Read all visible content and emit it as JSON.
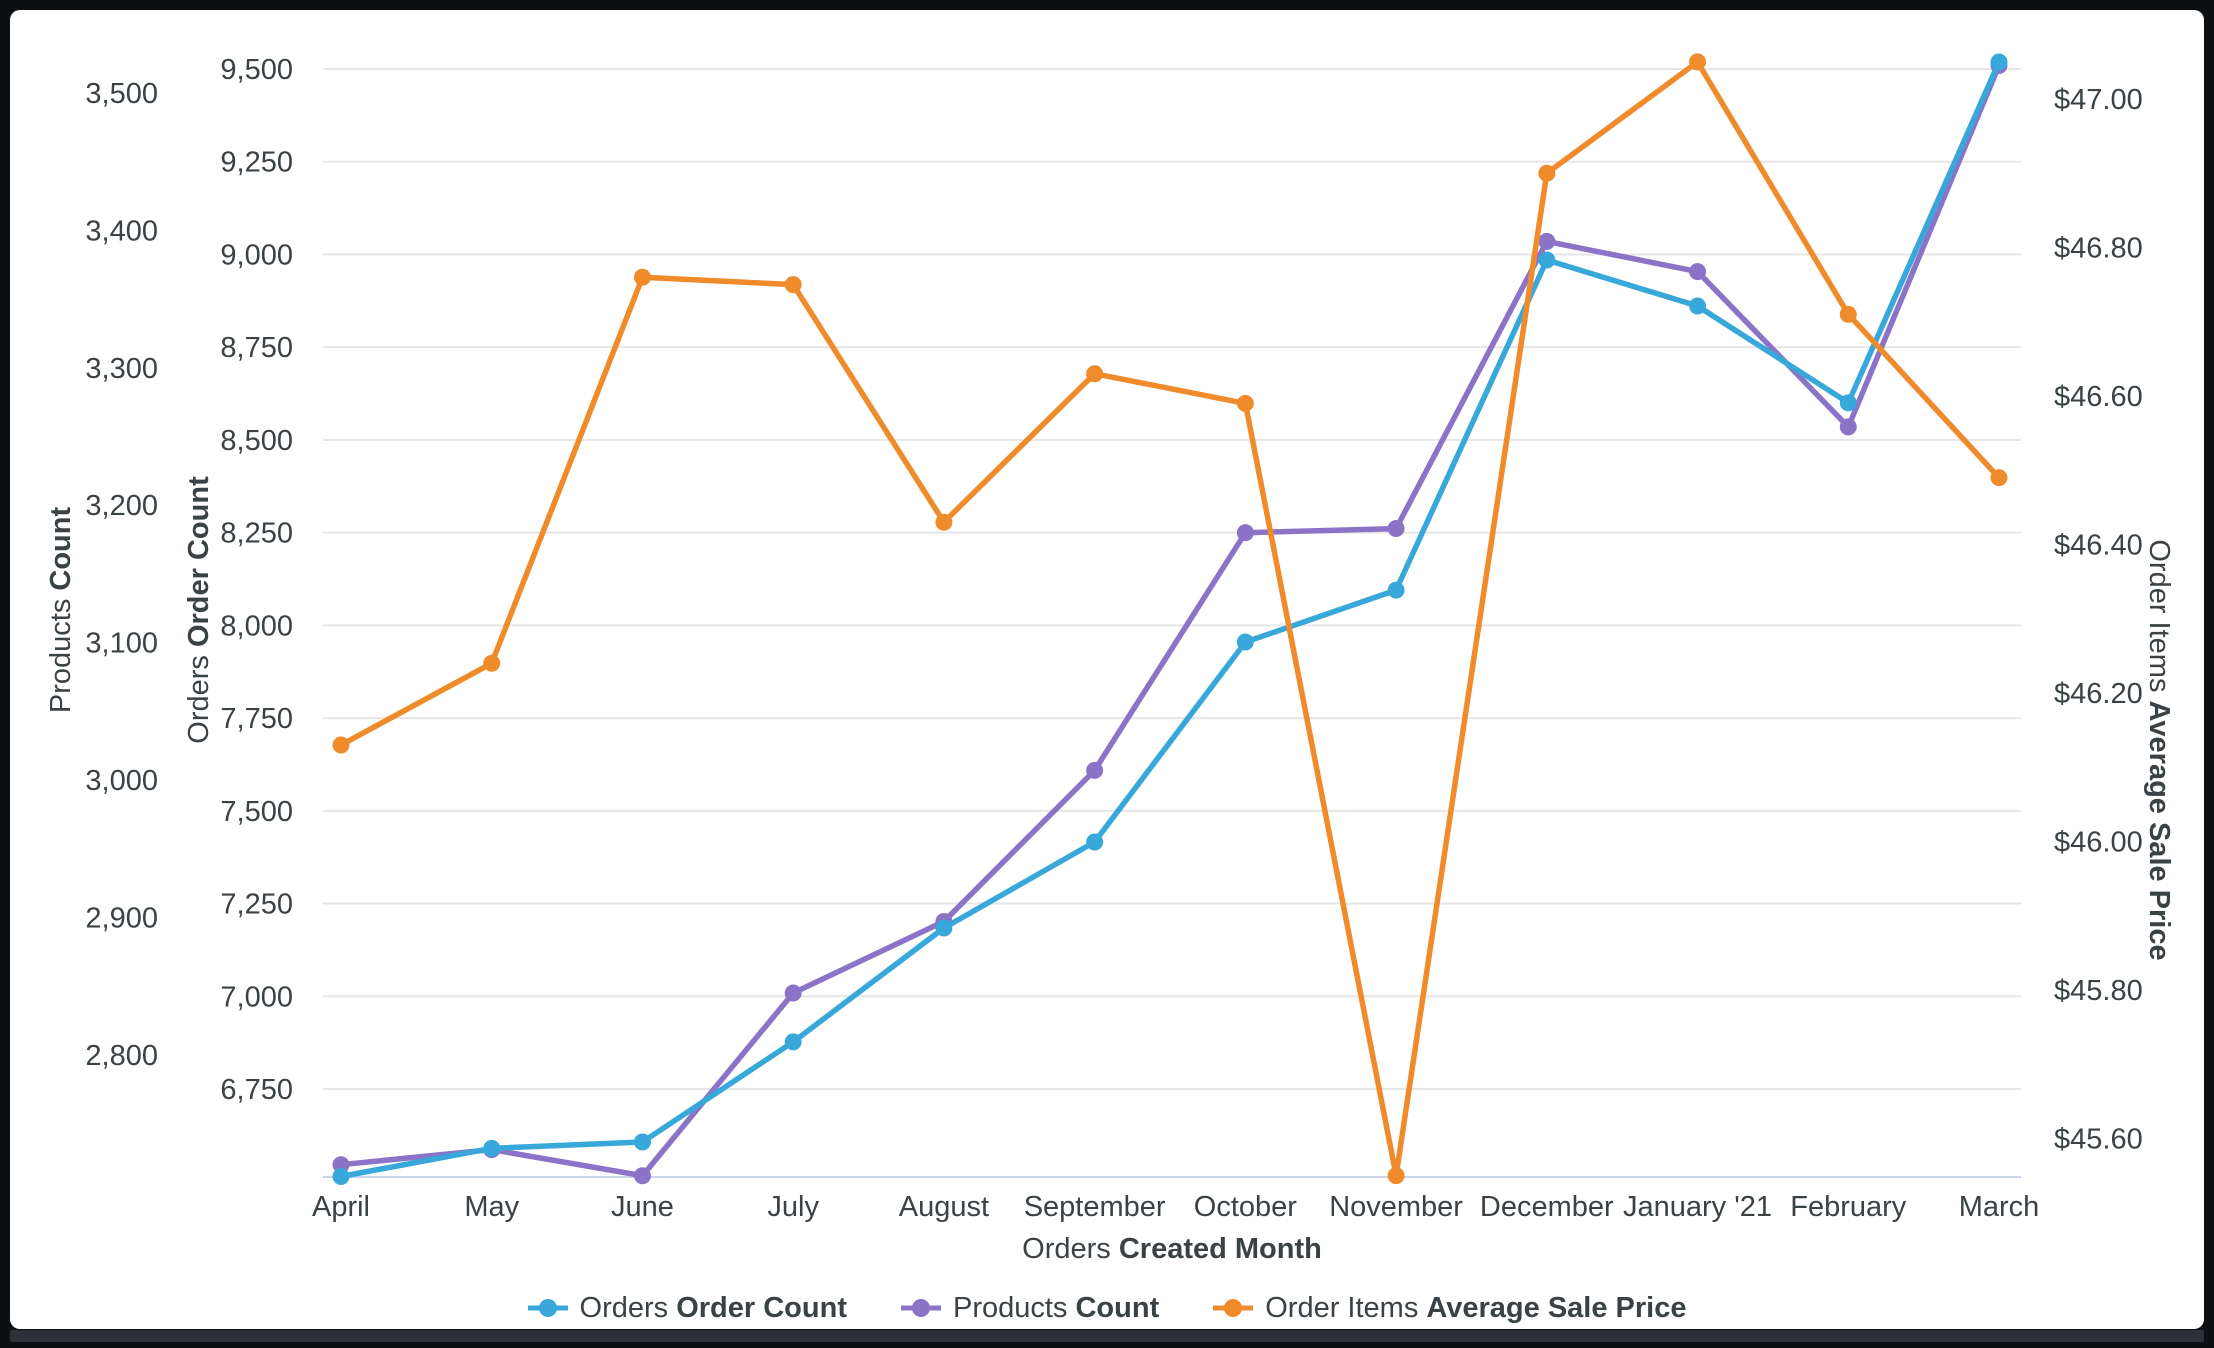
{
  "chart_data": {
    "type": "line",
    "categories": [
      "April",
      "May",
      "June",
      "July",
      "August",
      "September",
      "October",
      "November",
      "December",
      "January '21",
      "February",
      "March"
    ],
    "x_axis_title": {
      "regular": "Orders ",
      "bold": "Created Month"
    },
    "grid": true,
    "legend_position": "bottom",
    "axes": {
      "products": {
        "side": "left-outer",
        "title": {
          "regular": "Products ",
          "bold": "Count"
        },
        "color": "#8b74c7",
        "ticks": [
          "3,500",
          "3,400",
          "3,300",
          "3,200",
          "3,100",
          "3,000",
          "2,900",
          "2,800"
        ],
        "tick_values": [
          3500,
          3400,
          3300,
          3200,
          3100,
          3000,
          2900,
          2800
        ]
      },
      "orders": {
        "side": "left-inner",
        "title": {
          "regular": "Orders ",
          "bold": "Order Count"
        },
        "color": "#38a8da",
        "ticks": [
          "9,500",
          "9,250",
          "9,000",
          "8,750",
          "8,500",
          "8,250",
          "8,000",
          "7,750",
          "7,500",
          "7,250",
          "7,000",
          "6,750"
        ],
        "tick_values": [
          9500,
          9250,
          9000,
          8750,
          8500,
          8250,
          8000,
          7750,
          7500,
          7250,
          7000,
          6750
        ]
      },
      "price": {
        "side": "right",
        "title": {
          "regular": "Order Items ",
          "bold": "Average Sale Price"
        },
        "color": "#ef8b2b",
        "ticks": [
          "$47.00",
          "$46.80",
          "$46.60",
          "$46.40",
          "$46.20",
          "$46.00",
          "$45.80",
          "$45.60"
        ],
        "tick_values": [
          47.0,
          46.8,
          46.6,
          46.4,
          46.2,
          46.0,
          45.8,
          45.6
        ]
      }
    },
    "series": [
      {
        "id": "orders-order-count",
        "legend_regular": "Orders ",
        "legend_bold": "Order Count",
        "axis": "orders",
        "color": "#38a8da",
        "values": [
          6514,
          6590,
          6607,
          6877,
          7184,
          7416,
          7955,
          8095,
          8985,
          8861,
          8600,
          9519
        ]
      },
      {
        "id": "products-count",
        "legend_regular": "Products ",
        "legend_bold": "Count",
        "axis": "products",
        "color": "#8b74c7",
        "values": [
          2720,
          2731,
          2712,
          2845,
          2897,
          3007,
          3180,
          3183,
          3392,
          3370,
          3257,
          3520
        ]
      },
      {
        "id": "order-items-average-sale-price",
        "legend_regular": "Order Items ",
        "legend_bold": "Average Sale Price",
        "axis": "price",
        "color": "#ef8b2b",
        "values": [
          46.13,
          46.24,
          46.76,
          46.75,
          46.43,
          46.63,
          46.59,
          45.55,
          46.9,
          47.05,
          46.71,
          46.49
        ]
      }
    ],
    "style": {
      "grid_color": "#e6e6e6",
      "baseline_color": "#ccd6eb",
      "tick_text_color": "#3a4245"
    }
  }
}
